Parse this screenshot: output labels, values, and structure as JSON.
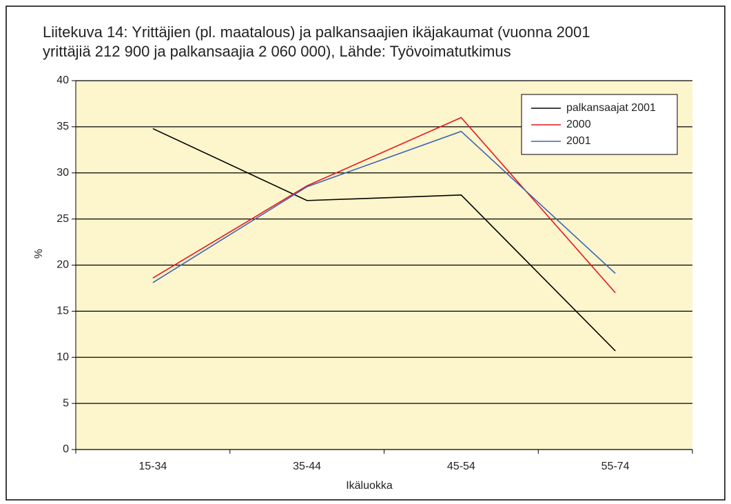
{
  "chart_data": {
    "type": "line",
    "title": [
      "Liitekuva 14: Yrittäjien (pl. maatalous) ja palkansaajien ikäjakaumat (vuonna 2001",
      "yrittäjiä 212 900 ja palkansaajia 2 060 000), Lähde: Työvoimatutkimus"
    ],
    "x_label": "Ikäluokka",
    "y_label": "%",
    "categories": [
      "15-34",
      "35-44",
      "45-54",
      "55-74"
    ],
    "series": [
      {
        "name": "palkansaajat 2001",
        "color": "#000000",
        "values": [
          34.8,
          27.0,
          27.6,
          10.7
        ]
      },
      {
        "name": "2000",
        "color": "#e8141e",
        "values": [
          18.6,
          28.6,
          36.0,
          17.0
        ]
      },
      {
        "name": "2001",
        "color": "#3a64b4",
        "values": [
          18.1,
          28.5,
          34.5,
          19.1
        ]
      }
    ],
    "ylim": [
      0,
      40
    ],
    "yticks": [
      0,
      5,
      10,
      15,
      20,
      25,
      30,
      35,
      40
    ],
    "grid": true,
    "legend": "upper right"
  }
}
